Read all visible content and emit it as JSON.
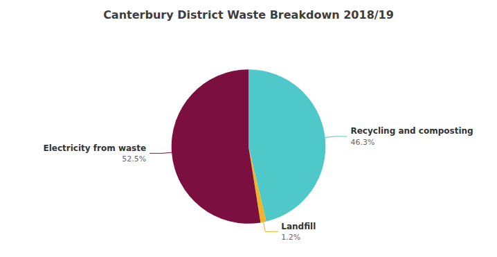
{
  "chart_data": {
    "type": "pie",
    "title": "Canterbury District Waste Breakdown 2018/19",
    "categories": [
      "Recycling and composting",
      "Landfill",
      "Electricity from waste"
    ],
    "values": [
      46.3,
      1.2,
      52.5
    ],
    "value_labels": [
      "46.3%",
      "1.2%",
      "52.5%"
    ],
    "colors": [
      "#4ec8c8",
      "#f0b429",
      "#7b1040"
    ],
    "data_labels": true
  }
}
